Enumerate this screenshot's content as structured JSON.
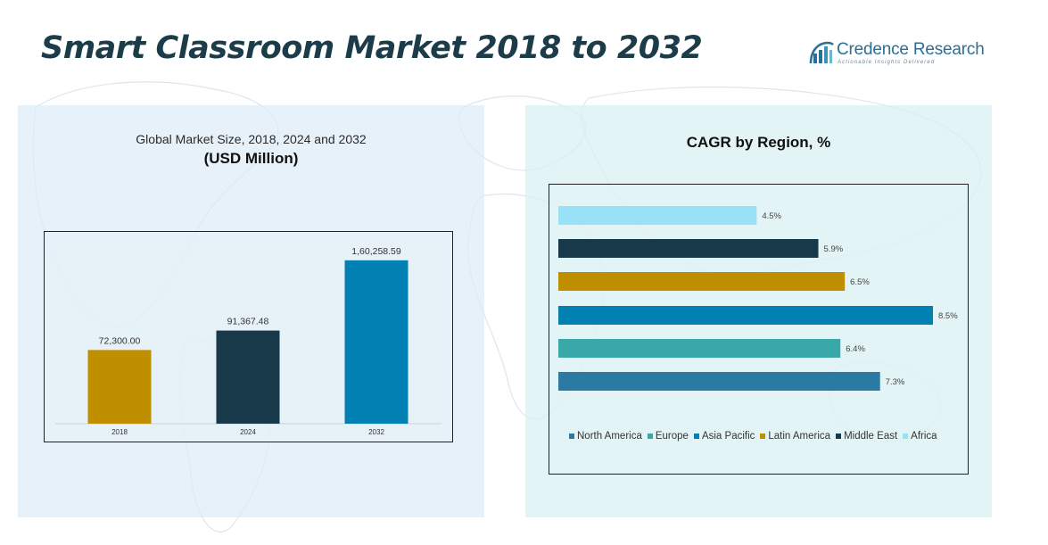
{
  "header": {
    "title": "Smart Classroom Market 2018 to 2032",
    "logo_name": "Credence Research",
    "logo_tagline": "Actionable Insights Delivered"
  },
  "left_panel": {
    "subtitle": "Global Market Size, 2018, 2024 and 2032",
    "unit": "(USD Million)"
  },
  "right_panel": {
    "title": "CAGR by Region, %"
  },
  "colors": {
    "brand_title": "#1b3c48",
    "logo_blue": "#2b6f95",
    "bar_2018": "#bf8f00",
    "bar_2024": "#17394a",
    "bar_2032": "#0080b3"
  },
  "chart_data": [
    {
      "type": "bar",
      "categories": [
        "2018",
        "2024",
        "2032"
      ],
      "values": [
        72300.0,
        91367.48,
        160258.59
      ],
      "data_labels": [
        "72,300.00",
        "91,367.48",
        "1,60,258.59"
      ],
      "colors": [
        "#bf8f00",
        "#17394a",
        "#0080b3"
      ],
      "ylim": [
        0,
        175000
      ],
      "grid": false,
      "legend": "none"
    },
    {
      "type": "bar",
      "orientation": "horizontal",
      "categories": [
        "North America",
        "Europe",
        "Asia Pacific",
        "Latin America",
        "Middle East",
        "Africa"
      ],
      "values": [
        7.3,
        6.4,
        8.5,
        6.5,
        5.9,
        4.5
      ],
      "data_labels": [
        "7.3%",
        "6.4%",
        "8.5%",
        "6.5%",
        "5.9%",
        "4.5%"
      ],
      "colors": [
        "#2a7aa3",
        "#3aa8a8",
        "#0080b3",
        "#bf8f00",
        "#17394a",
        "#99e1f7"
      ],
      "xlim": [
        0,
        8.5
      ],
      "grid": false,
      "legend": "bottom"
    }
  ]
}
